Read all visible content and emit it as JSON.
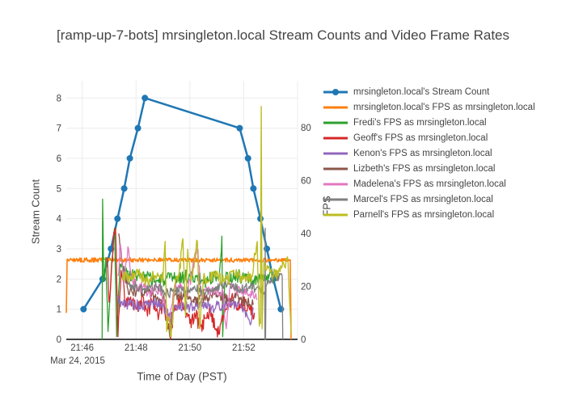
{
  "chart_data": {
    "type": "line",
    "title": "[ramp-up-7-bots] mrsingleton.local Stream Counts and Video Frame Rates",
    "x_axis": {
      "title": "Time of Day (PST)",
      "date_label": "Mar 24, 2015",
      "units": "minutes after 21:00 PST",
      "range_minutes": [
        45.41,
        54.0
      ],
      "ticks": [
        {
          "t": 46,
          "label": "21:46"
        },
        {
          "t": 48,
          "label": "21:48"
        },
        {
          "t": 50,
          "label": "21:50"
        },
        {
          "t": 52,
          "label": "21:52"
        }
      ],
      "gridlines": [
        46,
        48,
        50,
        52,
        54
      ]
    },
    "y_axis_left": {
      "title": "Stream Count",
      "range": [
        0,
        8.57
      ],
      "ticks": [
        0,
        1,
        2,
        3,
        4,
        5,
        6,
        7,
        8
      ]
    },
    "y_axis_right": {
      "title": "FPS",
      "range": [
        0,
        97.7
      ],
      "ticks": [
        0,
        20,
        40,
        60,
        80
      ]
    },
    "grid_on": true,
    "grid_color": "#ececec",
    "axis_line_color": "#444444",
    "text_color": "#444444",
    "background_color": "#ffffff",
    "legend_position": "right",
    "series": [
      {
        "name": "mrsingleton.local's Stream Count",
        "color": "#1f77b4",
        "axis": "left",
        "mode": "lines+markers",
        "line_width": 2.5,
        "marker_size": 4,
        "noise": 0,
        "seed": 1,
        "points": [
          [
            46.05,
            1
          ],
          [
            46.76,
            2
          ],
          [
            47.07,
            3
          ],
          [
            47.31,
            4
          ],
          [
            47.56,
            5
          ],
          [
            47.77,
            6
          ],
          [
            48.07,
            7
          ],
          [
            48.33,
            8
          ],
          [
            51.85,
            7
          ],
          [
            52.16,
            6
          ],
          [
            52.36,
            5
          ],
          [
            52.62,
            4
          ],
          [
            52.86,
            3
          ],
          [
            53.1,
            2
          ],
          [
            53.38,
            1
          ]
        ]
      },
      {
        "name": "mrsingleton.local's FPS as mrsingleton.local",
        "color": "#ff7f0e",
        "axis": "right",
        "mode": "lines",
        "line_width": 1.6,
        "noise": 0.8,
        "seed": 2,
        "points": [
          [
            45.41,
            10
          ],
          [
            45.44,
            30
          ],
          [
            53.73,
            30
          ],
          [
            53.76,
            0
          ]
        ]
      },
      {
        "name": "Fredi's FPS as mrsingleton.local",
        "color": "#2ca02c",
        "axis": "right",
        "mode": "lines",
        "line_width": 1.3,
        "noise": 2.5,
        "seed": 3,
        "points": [
          [
            46.74,
            0
          ],
          [
            46.76,
            53
          ],
          [
            46.8,
            22
          ],
          [
            46.88,
            31
          ],
          [
            46.96,
            3
          ],
          [
            47.1,
            30
          ],
          [
            47.2,
            42
          ],
          [
            47.28,
            1
          ],
          [
            47.4,
            28
          ],
          [
            47.6,
            25
          ],
          [
            48.2,
            24
          ],
          [
            48.8,
            22
          ],
          [
            49.4,
            23
          ],
          [
            50.0,
            24
          ],
          [
            50.6,
            22
          ],
          [
            51.1,
            25
          ],
          [
            51.19,
            39
          ],
          [
            51.22,
            1
          ],
          [
            51.3,
            23
          ],
          [
            51.8,
            24
          ],
          [
            52.3,
            22
          ],
          [
            52.8,
            23
          ],
          [
            53.3,
            24
          ]
        ]
      },
      {
        "name": "Geoff's FPS as mrsingleton.local",
        "color": "#d62728",
        "axis": "right",
        "mode": "lines",
        "line_width": 1.3,
        "noise": 3,
        "seed": 4,
        "points": [
          [
            46.92,
            31
          ],
          [
            47.0,
            14
          ],
          [
            47.15,
            36
          ],
          [
            47.24,
            42
          ],
          [
            47.33,
            1
          ],
          [
            47.45,
            26
          ],
          [
            47.6,
            13
          ],
          [
            47.8,
            16
          ],
          [
            48.0,
            12
          ],
          [
            48.2,
            15
          ],
          [
            48.4,
            11
          ],
          [
            48.6,
            14
          ],
          [
            48.8,
            10
          ],
          [
            49.0,
            13
          ],
          [
            49.2,
            4
          ],
          [
            49.3,
            1
          ],
          [
            49.45,
            13
          ],
          [
            49.6,
            15
          ],
          [
            49.8,
            11
          ],
          [
            50.0,
            6
          ],
          [
            50.2,
            9
          ],
          [
            50.4,
            5
          ],
          [
            50.6,
            8
          ],
          [
            50.8,
            10
          ],
          [
            50.95,
            4
          ],
          [
            51.1,
            2
          ],
          [
            51.25,
            9
          ],
          [
            51.4,
            13
          ],
          [
            51.6,
            15
          ],
          [
            51.8,
            11
          ],
          [
            52.0,
            14
          ],
          [
            52.2,
            12
          ],
          [
            52.4,
            10
          ]
        ]
      },
      {
        "name": "Kenon's FPS as mrsingleton.local",
        "color": "#9467bd",
        "axis": "right",
        "mode": "lines",
        "line_width": 1.3,
        "noise": 2.2,
        "seed": 5,
        "points": [
          [
            47.3,
            16
          ],
          [
            47.5,
            13
          ],
          [
            47.8,
            14
          ],
          [
            48.2,
            12
          ],
          [
            48.6,
            14
          ],
          [
            49.0,
            13
          ],
          [
            49.3,
            7
          ],
          [
            49.5,
            13
          ],
          [
            50.0,
            12
          ],
          [
            50.4,
            14
          ],
          [
            50.8,
            12
          ],
          [
            51.2,
            13
          ],
          [
            51.6,
            14
          ],
          [
            52.0,
            12
          ],
          [
            52.27,
            6
          ],
          [
            52.35,
            12
          ]
        ]
      },
      {
        "name": "Lizbeth's FPS as mrsingleton.local",
        "color": "#8c564b",
        "axis": "right",
        "mode": "lines",
        "line_width": 1.3,
        "noise": 2,
        "seed": 6,
        "points": [
          [
            47.36,
            40
          ],
          [
            47.5,
            28
          ],
          [
            47.7,
            19
          ],
          [
            48.0,
            17
          ],
          [
            48.4,
            18
          ],
          [
            48.8,
            16
          ],
          [
            49.1,
            15
          ],
          [
            49.25,
            1
          ],
          [
            49.4,
            16
          ],
          [
            49.8,
            17
          ],
          [
            50.2,
            15
          ],
          [
            50.6,
            16
          ],
          [
            51.0,
            17
          ],
          [
            51.4,
            15
          ],
          [
            51.8,
            16
          ],
          [
            52.1,
            14
          ],
          [
            52.35,
            13
          ]
        ]
      },
      {
        "name": "Madelena's FPS as mrsingleton.local",
        "color": "#e377c2",
        "axis": "right",
        "mode": "lines",
        "line_width": 1.3,
        "noise": 2.3,
        "seed": 7,
        "points": [
          [
            47.33,
            24
          ],
          [
            47.42,
            36
          ],
          [
            47.55,
            21
          ],
          [
            47.7,
            35
          ],
          [
            47.85,
            22
          ],
          [
            48.1,
            20
          ],
          [
            48.5,
            18
          ],
          [
            48.9,
            19
          ],
          [
            49.25,
            6
          ],
          [
            49.45,
            20
          ],
          [
            49.9,
            18
          ],
          [
            50.3,
            34
          ],
          [
            50.4,
            17
          ],
          [
            50.8,
            18
          ],
          [
            51.2,
            19
          ],
          [
            51.35,
            4
          ],
          [
            51.5,
            20
          ],
          [
            51.9,
            18
          ],
          [
            52.2,
            17
          ],
          [
            52.5,
            15
          ]
        ]
      },
      {
        "name": "Marcel's FPS as mrsingleton.local",
        "color": "#7f7f7f",
        "axis": "right",
        "mode": "lines",
        "line_width": 1.3,
        "noise": 1.8,
        "seed": 8,
        "points": [
          [
            47.55,
            26
          ],
          [
            47.7,
            21
          ],
          [
            48.0,
            20
          ],
          [
            48.4,
            19
          ],
          [
            48.8,
            20
          ],
          [
            49.2,
            17
          ],
          [
            49.4,
            19
          ],
          [
            49.8,
            18
          ],
          [
            50.2,
            19
          ],
          [
            50.6,
            18
          ],
          [
            51.0,
            20
          ],
          [
            51.4,
            21
          ],
          [
            51.8,
            19
          ],
          [
            52.2,
            20
          ],
          [
            52.6,
            19
          ],
          [
            52.78,
            18
          ],
          [
            52.79,
            0
          ],
          [
            52.8,
            42
          ],
          [
            52.81,
            0
          ],
          [
            52.83,
            20
          ],
          [
            53.0,
            22
          ],
          [
            53.2,
            23
          ],
          [
            53.43,
            24
          ],
          [
            53.45,
            0
          ]
        ]
      },
      {
        "name": "Parnell's FPS as mrsingleton.local",
        "color": "#bcbd22",
        "axis": "right",
        "mode": "lines",
        "line_width": 1.4,
        "noise": 2.4,
        "seed": 9,
        "points": [
          [
            47.5,
            24
          ],
          [
            47.8,
            23
          ],
          [
            48.1,
            25
          ],
          [
            48.4,
            22
          ],
          [
            48.7,
            24
          ],
          [
            49.0,
            23
          ],
          [
            49.08,
            37
          ],
          [
            49.14,
            3
          ],
          [
            49.22,
            8
          ],
          [
            49.3,
            1
          ],
          [
            49.45,
            21
          ],
          [
            49.6,
            24
          ],
          [
            49.74,
            38
          ],
          [
            49.84,
            9
          ],
          [
            49.92,
            34
          ],
          [
            50.05,
            22
          ],
          [
            50.28,
            37
          ],
          [
            50.36,
            4
          ],
          [
            50.5,
            23
          ],
          [
            50.9,
            24
          ],
          [
            51.3,
            22
          ],
          [
            51.7,
            25
          ],
          [
            52.0,
            23
          ],
          [
            52.3,
            24
          ],
          [
            52.5,
            37
          ],
          [
            52.58,
            5
          ],
          [
            52.62,
            6
          ],
          [
            52.65,
            88
          ],
          [
            52.68,
            4
          ],
          [
            52.75,
            29
          ],
          [
            52.9,
            27
          ],
          [
            53.1,
            24
          ],
          [
            53.3,
            26
          ],
          [
            53.5,
            28
          ],
          [
            53.65,
            29
          ],
          [
            53.76,
            2
          ]
        ]
      }
    ]
  }
}
